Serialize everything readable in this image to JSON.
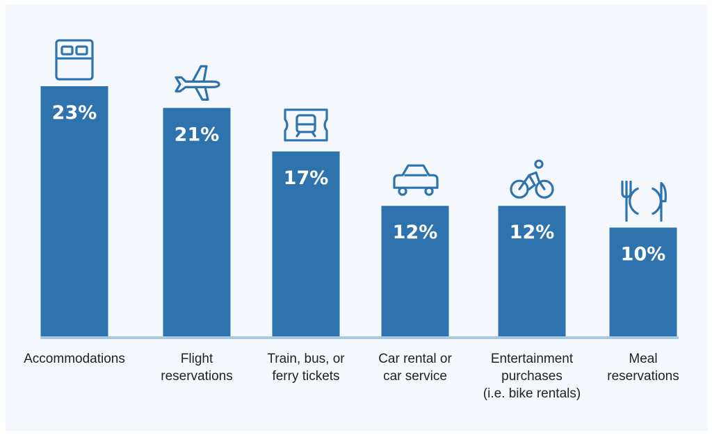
{
  "chart_data": {
    "type": "bar",
    "categories": [
      "Accommodations",
      "Flight reservations",
      "Train, bus, or ferry tickets",
      "Car rental or car service",
      "Entertainment purchases (i.e. bike rentals)",
      "Meal reservations"
    ],
    "category_lines": [
      [
        "Accommodations"
      ],
      [
        "Flight",
        "reservations"
      ],
      [
        "Train, bus, or",
        "ferry tickets"
      ],
      [
        "Car rental or",
        "car service"
      ],
      [
        "Entertainment",
        "purchases",
        "(i.e. bike rentals)"
      ],
      [
        "Meal",
        "reservations"
      ]
    ],
    "values": [
      23,
      21,
      17,
      12,
      12,
      10
    ],
    "value_labels": [
      "23%",
      "21%",
      "17%",
      "12%",
      "12%",
      "10%"
    ],
    "icons": [
      "bed-icon",
      "airplane-icon",
      "train-ticket-icon",
      "car-icon",
      "bicycle-icon",
      "fork-plate-knife-icon"
    ],
    "ylim": [
      0,
      25
    ],
    "grid": false,
    "legend": "none",
    "colors": {
      "bar": "#2e72ae",
      "baseline": "#a7c9df",
      "icon": "#2e72ae",
      "background": "#f4f8fc"
    }
  }
}
